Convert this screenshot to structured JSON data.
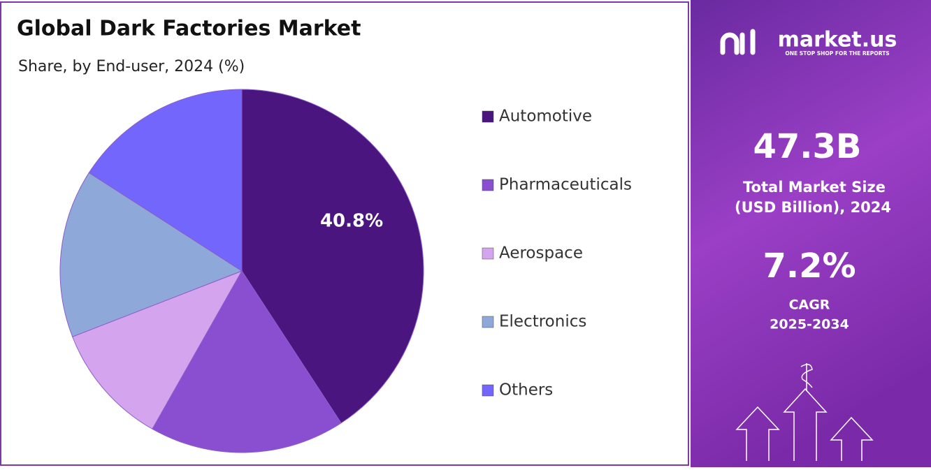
{
  "chart_data": {
    "type": "pie",
    "title": "Global Dark Factories Market",
    "subtitle": "Share, by End-user, 2024 (%)",
    "categories": [
      "Automotive",
      "Pharmaceuticals",
      "Aerospace",
      "Electronics",
      "Others"
    ],
    "values": [
      40.8,
      17.4,
      10.9,
      15.0,
      15.9
    ],
    "value_labels": [
      "40.8%",
      null,
      null,
      null,
      null
    ],
    "colors": [
      "#4b1580",
      "#8a4fd1",
      "#d4a5ee",
      "#8fa8da",
      "#7266fc"
    ],
    "legend": "right"
  },
  "panel": {
    "brand": "market.us",
    "tagline": "ONE STOP SHOP FOR THE REPORTS",
    "market_size": "47.3B",
    "market_size_label": [
      "Total Market Size",
      "(USD Billion), 2024"
    ],
    "cagr": "7.2%",
    "cagr_label": [
      "CAGR",
      "2025-2034"
    ]
  }
}
